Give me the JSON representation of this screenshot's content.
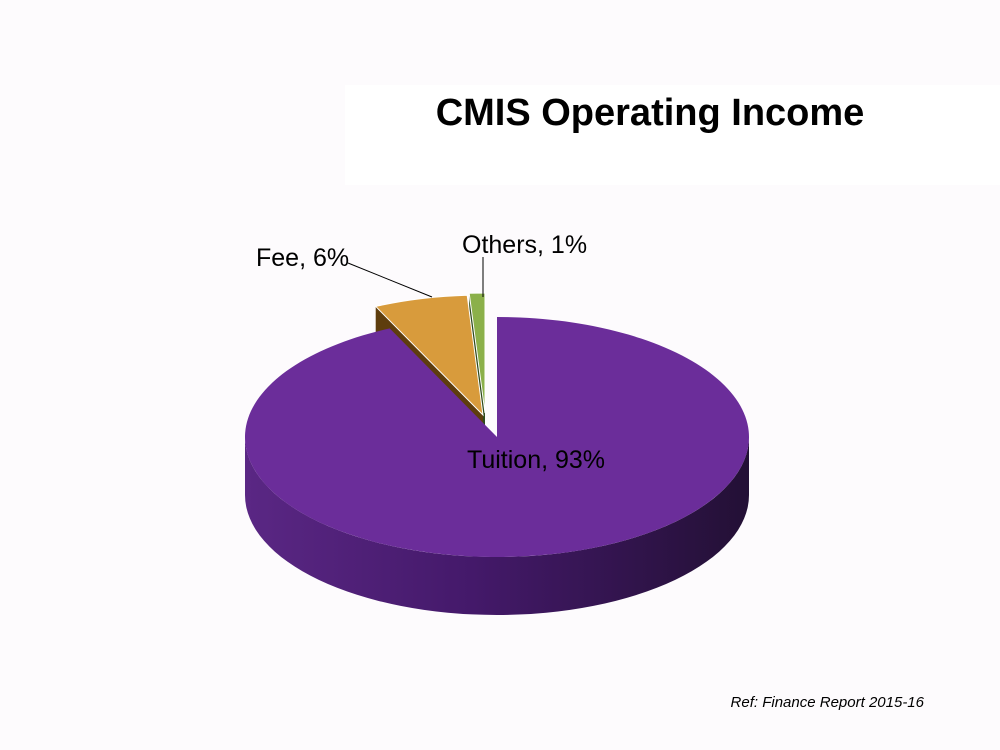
{
  "chart_data": {
    "type": "pie",
    "title": "CMIS Operating Income",
    "slices": [
      {
        "label": "Tuition",
        "value": 93,
        "display": "Tuition, 93%",
        "color": "#6b2d9a",
        "side_color": "#4a1d70"
      },
      {
        "label": "Fee",
        "value": 6,
        "display": "Fee, 6%",
        "color": "#d89b3c",
        "side_color": "#5e3d0e"
      },
      {
        "label": "Others",
        "value": 1,
        "display": "Others, 1%",
        "color": "#8bb04a",
        "side_color": "#2f4a1c"
      }
    ],
    "exploded": true,
    "three_d": true
  },
  "footnote": "Ref: Finance Report 2015-16"
}
